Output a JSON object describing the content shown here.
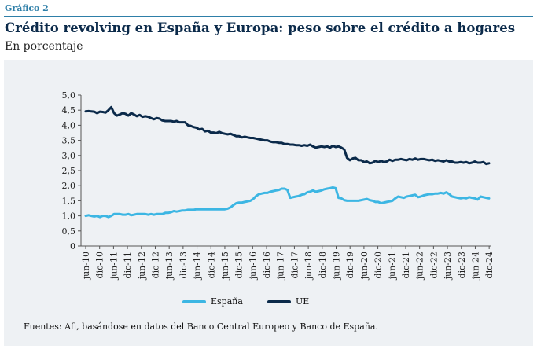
{
  "header": {
    "label": "Gráfico 2",
    "title": "Crédito revolving en España y Europa: peso sobre el crédito a hogares",
    "subtitle": "En porcentaje",
    "source": "Fuentes: Afi, basándose en datos del Banco Central Europeo y Banco de España."
  },
  "colors": {
    "espana": "#3cb6e3",
    "ue": "#0b2a4a",
    "panel": "#eef1f4",
    "axis": "#555555"
  },
  "chart_data": {
    "type": "line",
    "x_tick_labels": [
      "jun-10",
      "dic-10",
      "jun-11",
      "dic-11",
      "jun-12",
      "dic-12",
      "jun-13",
      "dic-13",
      "jun-14",
      "dic-14",
      "jun-15",
      "dic-15",
      "jun-16",
      "dic-16",
      "jun-17",
      "dic-17",
      "jun-18",
      "dic-18",
      "jun-19",
      "dic-19",
      "jun-20",
      "dic-20",
      "jun-21",
      "dic-21",
      "jun-22",
      "dic-22",
      "jun-23",
      "dic-23",
      "jun-24",
      "dic-24"
    ],
    "y_tick_labels": [
      "0",
      "0,5",
      "1,0",
      "1,5",
      "2,0",
      "2,5",
      "3,0",
      "3,5",
      "4,0",
      "4,5",
      "5,0"
    ],
    "ylim": [
      0,
      5
    ],
    "legend_position": "bottom",
    "series": [
      {
        "name": "España",
        "values": [
          1.0,
          1.02,
          1.0,
          0.98,
          1.0,
          0.96,
          1.0,
          1.0,
          0.96,
          1.0,
          1.06,
          1.06,
          1.06,
          1.04,
          1.04,
          1.06,
          1.02,
          1.04,
          1.06,
          1.06,
          1.06,
          1.06,
          1.04,
          1.06,
          1.04,
          1.06,
          1.06,
          1.06,
          1.1,
          1.1,
          1.12,
          1.16,
          1.14,
          1.16,
          1.18,
          1.18,
          1.2,
          1.2,
          1.2,
          1.22,
          1.22,
          1.22,
          1.22,
          1.22,
          1.22,
          1.22,
          1.22,
          1.22,
          1.22,
          1.22,
          1.24,
          1.28,
          1.36,
          1.42,
          1.44,
          1.44,
          1.46,
          1.48,
          1.5,
          1.56,
          1.66,
          1.72,
          1.74,
          1.76,
          1.76,
          1.8,
          1.82,
          1.84,
          1.86,
          1.9,
          1.9,
          1.86,
          1.6,
          1.62,
          1.64,
          1.66,
          1.7,
          1.72,
          1.78,
          1.8,
          1.84,
          1.8,
          1.82,
          1.84,
          1.88,
          1.9,
          1.92,
          1.94,
          1.92,
          1.6,
          1.58,
          1.52,
          1.5,
          1.5,
          1.5,
          1.5,
          1.5,
          1.52,
          1.54,
          1.56,
          1.52,
          1.5,
          1.46,
          1.46,
          1.42,
          1.44,
          1.46,
          1.48,
          1.5,
          1.58,
          1.64,
          1.62,
          1.6,
          1.64,
          1.66,
          1.68,
          1.7,
          1.62,
          1.64,
          1.68,
          1.7,
          1.72,
          1.72,
          1.74,
          1.74,
          1.76,
          1.74,
          1.78,
          1.72,
          1.64,
          1.62,
          1.6,
          1.58,
          1.6,
          1.58,
          1.62,
          1.6,
          1.58,
          1.54,
          1.64,
          1.62,
          1.6,
          1.58
        ]
      },
      {
        "name": "UE",
        "values": [
          4.46,
          4.47,
          4.46,
          4.45,
          4.4,
          4.45,
          4.44,
          4.42,
          4.5,
          4.6,
          4.4,
          4.32,
          4.36,
          4.4,
          4.38,
          4.32,
          4.4,
          4.36,
          4.3,
          4.34,
          4.28,
          4.3,
          4.28,
          4.24,
          4.2,
          4.24,
          4.22,
          4.16,
          4.14,
          4.14,
          4.14,
          4.12,
          4.14,
          4.1,
          4.1,
          4.1,
          4.0,
          3.98,
          3.94,
          3.92,
          3.86,
          3.88,
          3.8,
          3.82,
          3.76,
          3.76,
          3.74,
          3.78,
          3.74,
          3.72,
          3.7,
          3.72,
          3.68,
          3.64,
          3.64,
          3.6,
          3.62,
          3.6,
          3.58,
          3.58,
          3.56,
          3.54,
          3.52,
          3.5,
          3.5,
          3.46,
          3.44,
          3.44,
          3.42,
          3.42,
          3.38,
          3.38,
          3.36,
          3.36,
          3.34,
          3.34,
          3.32,
          3.34,
          3.32,
          3.36,
          3.3,
          3.26,
          3.28,
          3.3,
          3.28,
          3.3,
          3.26,
          3.32,
          3.28,
          3.3,
          3.26,
          3.2,
          2.92,
          2.84,
          2.9,
          2.92,
          2.84,
          2.84,
          2.78,
          2.8,
          2.74,
          2.76,
          2.82,
          2.78,
          2.82,
          2.78,
          2.8,
          2.86,
          2.82,
          2.86,
          2.86,
          2.88,
          2.86,
          2.84,
          2.88,
          2.86,
          2.9,
          2.86,
          2.88,
          2.88,
          2.86,
          2.84,
          2.86,
          2.82,
          2.84,
          2.82,
          2.8,
          2.84,
          2.8,
          2.8,
          2.76,
          2.76,
          2.78,
          2.76,
          2.78,
          2.74,
          2.76,
          2.8,
          2.76,
          2.76,
          2.78,
          2.72,
          2.74
        ]
      }
    ]
  }
}
